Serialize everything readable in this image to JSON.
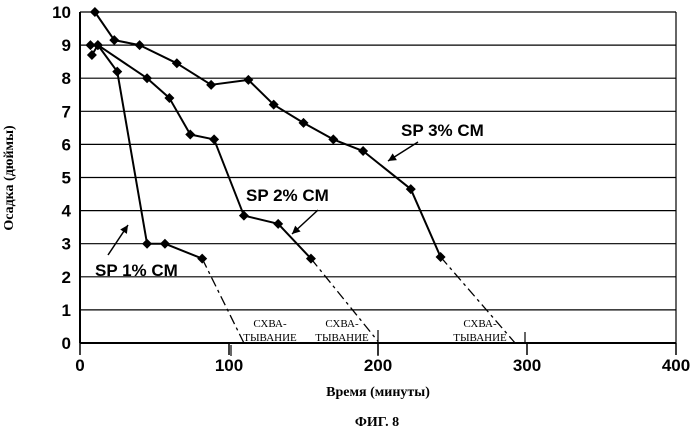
{
  "chart_data": {
    "type": "line",
    "title": "",
    "figure_label": "ФИГ. 8",
    "xlabel": "Время (минуты)",
    "ylabel": "Осадка (дюймы)",
    "xlim": [
      0,
      400
    ],
    "ylim": [
      0,
      10
    ],
    "x_ticks": [
      0,
      100,
      200,
      300,
      400
    ],
    "y_ticks": [
      0,
      1,
      2,
      3,
      4,
      5,
      6,
      7,
      8,
      9,
      10
    ],
    "grid": "horizontal",
    "series": [
      {
        "name": "SP 1% CM",
        "x": [
          8,
          12,
          25,
          45,
          57,
          82
        ],
        "y": [
          8.7,
          9.0,
          8.2,
          3.0,
          3.0,
          2.55
        ]
      },
      {
        "name": "SP 2% CM",
        "x": [
          7,
          12,
          45,
          60,
          74,
          90,
          110,
          133,
          155
        ],
        "y": [
          9.0,
          9.0,
          8.0,
          7.4,
          6.3,
          6.15,
          3.85,
          3.6,
          2.55
        ]
      },
      {
        "name": "SP 3% CM",
        "x": [
          10,
          23,
          40,
          65,
          88,
          113,
          130,
          150,
          170,
          190,
          222,
          242
        ],
        "y": [
          10.0,
          9.15,
          9.0,
          8.45,
          7.8,
          7.95,
          7.2,
          6.65,
          6.15,
          5.8,
          4.65,
          2.6
        ]
      }
    ],
    "set_labels": [
      {
        "lines": [
          "СХВА-",
          "ТЫВАНИЕ"
        ]
      },
      {
        "lines": [
          "СХВА-",
          "ТЫВАНИЕ"
        ]
      },
      {
        "lines": [
          "СХВА-",
          "ТЫВАНИЕ"
        ]
      }
    ]
  }
}
